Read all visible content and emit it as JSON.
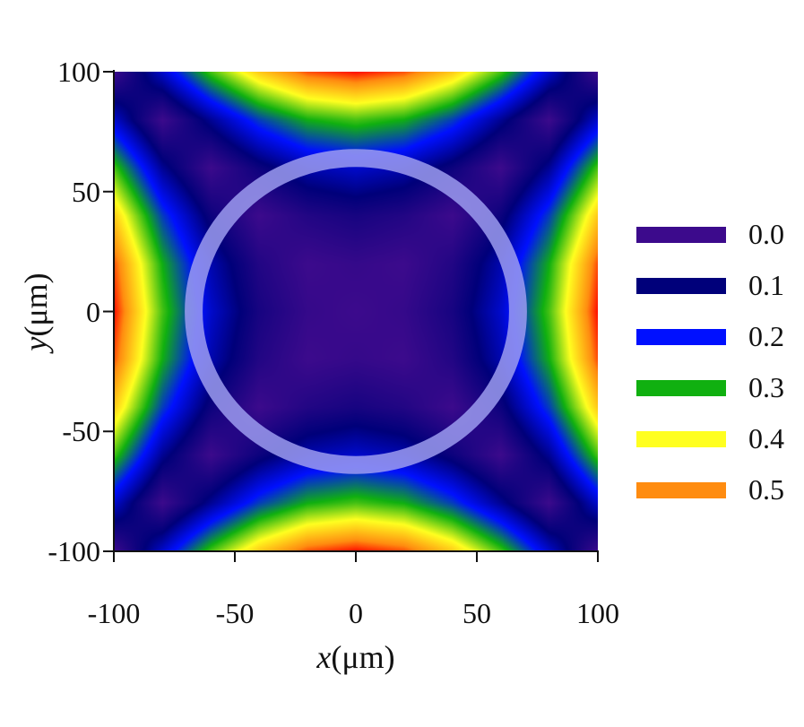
{
  "chart_data": {
    "type": "heatmap",
    "title": "",
    "xlabel_var": "x",
    "xlabel_unit": "(μm)",
    "ylabel_var": "y",
    "ylabel_unit": "(μm)",
    "xlim": [
      -100,
      100
    ],
    "ylim": [
      -100,
      100
    ],
    "xticks": [
      -100,
      -50,
      0,
      50,
      100
    ],
    "yticks": [
      100,
      50,
      0,
      -50,
      -100
    ],
    "grid_x": [
      -100,
      -80,
      -60,
      -40,
      -20,
      0,
      20,
      40,
      60,
      80,
      100
    ],
    "grid_y": [
      100,
      80,
      60,
      40,
      20,
      0,
      -20,
      -40,
      -60,
      -80,
      -100
    ],
    "z": [
      [
        0,
        0.161,
        0.322,
        0.446,
        0.524,
        0.55,
        0.524,
        0.446,
        0.322,
        0.161,
        0
      ],
      [
        0.161,
        0,
        0.119,
        0.228,
        0.298,
        0.322,
        0.298,
        0.228,
        0.119,
        0,
        0.161
      ],
      [
        0.322,
        0.119,
        0,
        0.08,
        0.14,
        0.161,
        0.14,
        0.08,
        0,
        0.119,
        0.322
      ],
      [
        0.446,
        0.228,
        0.08,
        0,
        0.043,
        0.061,
        0.043,
        0,
        0.08,
        0.228,
        0.446
      ],
      [
        0.524,
        0.298,
        0.14,
        0.043,
        0,
        0.012,
        0,
        0.043,
        0.14,
        0.298,
        0.524
      ],
      [
        0.55,
        0.322,
        0.161,
        0.061,
        0.012,
        0,
        0.012,
        0.061,
        0.161,
        0.322,
        0.55
      ],
      [
        0.524,
        0.298,
        0.14,
        0.043,
        0,
        0.012,
        0,
        0.043,
        0.14,
        0.298,
        0.524
      ],
      [
        0.446,
        0.228,
        0.08,
        0,
        0.043,
        0.061,
        0.043,
        0,
        0.08,
        0.228,
        0.446
      ],
      [
        0.322,
        0.119,
        0,
        0.08,
        0.14,
        0.161,
        0.14,
        0.08,
        0,
        0.119,
        0.322
      ],
      [
        0.161,
        0,
        0.119,
        0.228,
        0.298,
        0.322,
        0.298,
        0.228,
        0.119,
        0,
        0.161
      ],
      [
        0,
        0.161,
        0.322,
        0.446,
        0.524,
        0.55,
        0.524,
        0.446,
        0.322,
        0.161,
        0
      ]
    ],
    "colorscale": [
      {
        "value": 0.0,
        "color": "#3c0a8c"
      },
      {
        "value": 0.1,
        "color": "#00007a"
      },
      {
        "value": 0.2,
        "color": "#0010ff"
      },
      {
        "value": 0.3,
        "color": "#10b010"
      },
      {
        "value": 0.4,
        "color": "#ffff20"
      },
      {
        "value": 0.5,
        "color": "#ff8c10"
      },
      {
        "value": 0.55,
        "color": "#ff1000"
      }
    ],
    "legend": {
      "placement": "right",
      "entries": [
        {
          "label": "0.0",
          "color": "#3c0a8c"
        },
        {
          "label": "0.1",
          "color": "#00007a"
        },
        {
          "label": "0.2",
          "color": "#0010ff"
        },
        {
          "label": "0.3",
          "color": "#10b010"
        },
        {
          "label": "0.4",
          "color": "#ffff20"
        },
        {
          "label": "0.5",
          "color": "#ff8c10"
        }
      ]
    },
    "annotations": [
      {
        "type": "circle",
        "center": [
          0,
          0
        ],
        "radius_x": 67,
        "radius_y": 64,
        "color": "#9c9cf0"
      }
    ]
  }
}
